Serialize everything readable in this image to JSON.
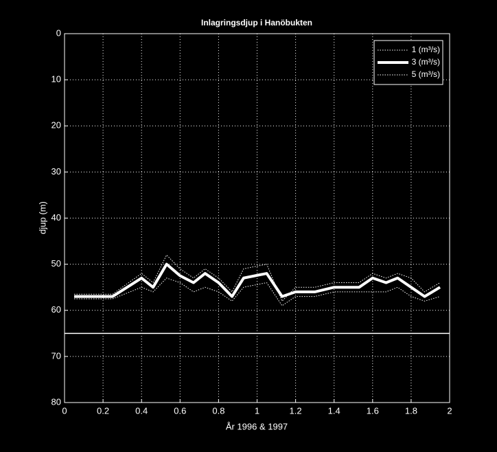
{
  "chart_data": {
    "type": "line",
    "title": "Inlagringsdjup i Hanöbukten",
    "xlabel": "År 1996 & 1997",
    "ylabel": "djup (m)",
    "x": [
      0.05,
      0.25,
      0.4,
      0.46,
      0.53,
      0.6,
      0.67,
      0.73,
      0.8,
      0.87,
      0.93,
      1.05,
      1.13,
      1.2,
      1.3,
      1.4,
      1.53,
      1.6,
      1.67,
      1.73,
      1.8,
      1.87,
      1.95
    ],
    "series": [
      {
        "name": "1 (m³/s)",
        "color": "#ffffff",
        "linestyle": "dotted",
        "width": 1,
        "values": [
          57.5,
          57.5,
          55,
          56,
          53,
          54,
          56,
          55,
          56,
          58,
          55,
          54,
          59,
          57,
          57,
          56,
          56,
          56,
          56,
          55,
          57,
          58,
          57
        ]
      },
      {
        "name": "3 (m³/s)",
        "color": "#ffffff",
        "linestyle": "solid",
        "width": 4,
        "values": [
          57,
          57,
          53,
          55,
          50,
          52.5,
          54,
          52,
          54,
          57,
          53,
          52,
          57,
          56,
          56,
          55,
          55,
          53,
          54,
          53,
          55,
          57,
          55
        ]
      },
      {
        "name": "5 (m³/s)",
        "color": "#ffffff",
        "linestyle": "dotted",
        "width": 1,
        "values": [
          56.5,
          56.5,
          52,
          54,
          48,
          51,
          53,
          51,
          53,
          56,
          51,
          50,
          58,
          55,
          55,
          54,
          54,
          52,
          53,
          52,
          53,
          56,
          54
        ]
      }
    ],
    "reference_lines": [
      65
    ],
    "xlim": [
      0,
      2
    ],
    "xticks": [
      0,
      0.2,
      0.4,
      0.6,
      0.8,
      1,
      1.2,
      1.4,
      1.6,
      1.8,
      2
    ],
    "ylim": [
      0,
      80
    ],
    "yticks": [
      0,
      10,
      20,
      30,
      40,
      50,
      60,
      70,
      80
    ],
    "y_reversed": true,
    "grid": true,
    "legend": "top-right"
  }
}
